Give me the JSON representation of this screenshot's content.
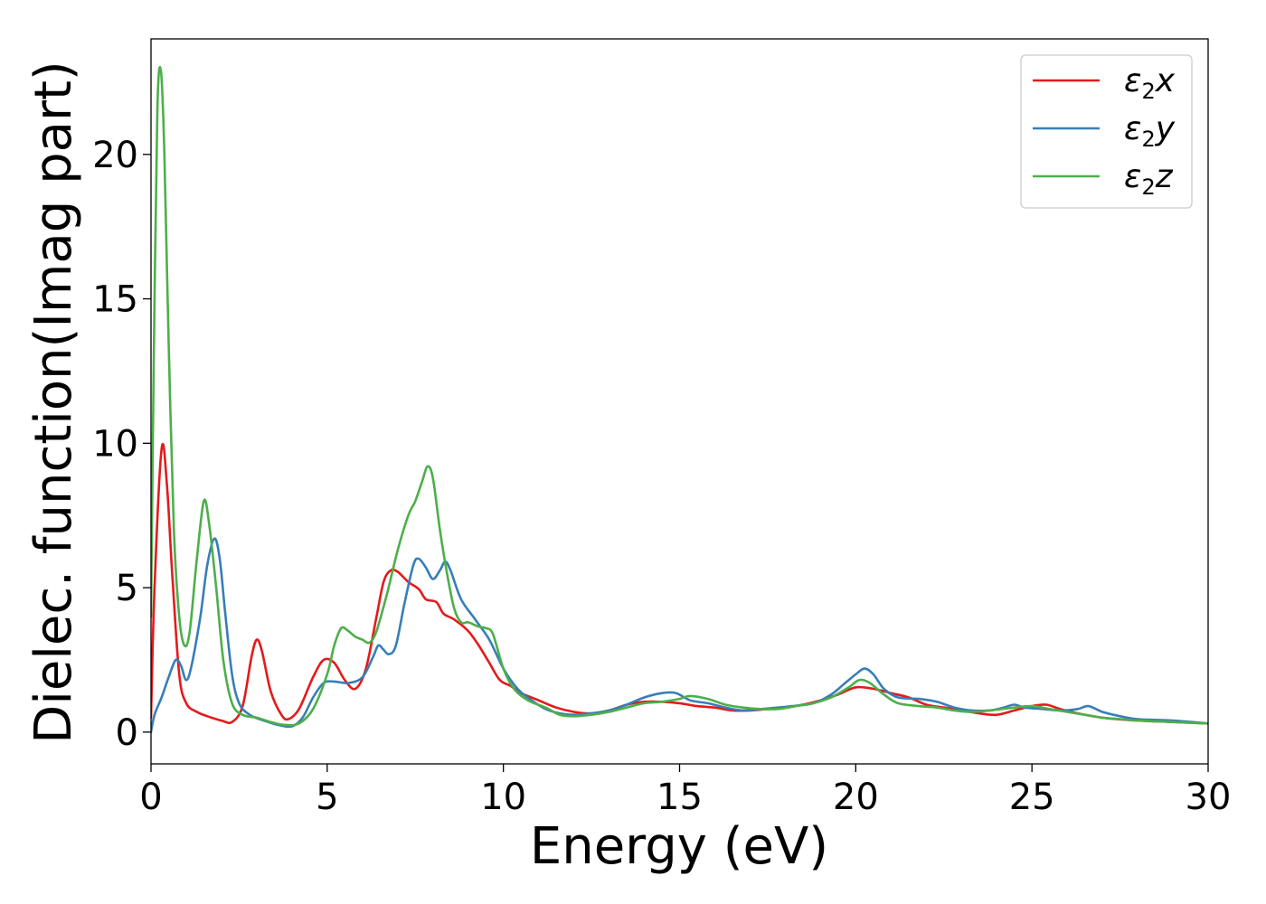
{
  "chart_data": {
    "type": "line",
    "xlabel": "Energy (eV)",
    "ylabel": "Dielec. function(Imag part)",
    "xlim": [
      0,
      30
    ],
    "ylim": [
      -1.1,
      24.0
    ],
    "xticks": [
      0,
      5,
      10,
      15,
      20,
      25,
      30
    ],
    "yticks": [
      0,
      5,
      10,
      15,
      20
    ],
    "grid": false,
    "legend_position": "top-right",
    "series": [
      {
        "name": "ε2x",
        "legend_base": "ε",
        "legend_sub": "2",
        "legend_suffix": "x",
        "color": "#e41a1c",
        "points": [
          [
            0,
            0.5
          ],
          [
            0.1,
            5.0
          ],
          [
            0.3,
            9.8
          ],
          [
            0.45,
            8.6
          ],
          [
            0.6,
            5.5
          ],
          [
            0.8,
            2.0
          ],
          [
            1.0,
            1.0
          ],
          [
            1.3,
            0.7
          ],
          [
            1.6,
            0.55
          ],
          [
            2.0,
            0.4
          ],
          [
            2.3,
            0.35
          ],
          [
            2.6,
            0.9
          ],
          [
            2.85,
            2.6
          ],
          [
            3.0,
            3.2
          ],
          [
            3.15,
            2.8
          ],
          [
            3.4,
            1.4
          ],
          [
            3.7,
            0.6
          ],
          [
            3.9,
            0.45
          ],
          [
            4.2,
            0.8
          ],
          [
            4.6,
            1.9
          ],
          [
            4.9,
            2.5
          ],
          [
            5.2,
            2.4
          ],
          [
            5.5,
            1.8
          ],
          [
            5.8,
            1.5
          ],
          [
            6.1,
            2.2
          ],
          [
            6.4,
            4.0
          ],
          [
            6.6,
            5.2
          ],
          [
            6.8,
            5.6
          ],
          [
            7.0,
            5.55
          ],
          [
            7.3,
            5.2
          ],
          [
            7.6,
            4.95
          ],
          [
            7.8,
            4.6
          ],
          [
            8.1,
            4.5
          ],
          [
            8.3,
            4.1
          ],
          [
            8.6,
            3.9
          ],
          [
            9.0,
            3.5
          ],
          [
            9.3,
            3.0
          ],
          [
            9.6,
            2.4
          ],
          [
            9.9,
            1.8
          ],
          [
            10.2,
            1.6
          ],
          [
            10.5,
            1.35
          ],
          [
            11.0,
            1.1
          ],
          [
            11.5,
            0.85
          ],
          [
            12.0,
            0.7
          ],
          [
            12.5,
            0.65
          ],
          [
            13.0,
            0.75
          ],
          [
            13.5,
            0.95
          ],
          [
            14.0,
            1.05
          ],
          [
            14.5,
            1.05
          ],
          [
            15.0,
            1.0
          ],
          [
            15.5,
            0.9
          ],
          [
            16.0,
            0.85
          ],
          [
            16.5,
            0.75
          ],
          [
            17.0,
            0.75
          ],
          [
            17.5,
            0.8
          ],
          [
            18.0,
            0.85
          ],
          [
            18.5,
            0.95
          ],
          [
            19.0,
            1.1
          ],
          [
            19.5,
            1.3
          ],
          [
            20.0,
            1.55
          ],
          [
            20.5,
            1.5
          ],
          [
            21.0,
            1.35
          ],
          [
            21.5,
            1.2
          ],
          [
            22.0,
            0.95
          ],
          [
            22.5,
            0.85
          ],
          [
            23.0,
            0.75
          ],
          [
            23.5,
            0.65
          ],
          [
            24.0,
            0.6
          ],
          [
            24.5,
            0.75
          ],
          [
            25.0,
            0.9
          ],
          [
            25.4,
            0.95
          ],
          [
            25.8,
            0.8
          ],
          [
            26.3,
            0.65
          ],
          [
            27.0,
            0.5
          ],
          [
            28.0,
            0.4
          ],
          [
            29.0,
            0.35
          ],
          [
            30.0,
            0.3
          ]
        ]
      },
      {
        "name": "ε2y",
        "legend_base": "ε",
        "legend_sub": "2",
        "legend_suffix": "y",
        "color": "#377eb8",
        "points": [
          [
            0,
            0.0
          ],
          [
            0.1,
            0.6
          ],
          [
            0.3,
            1.2
          ],
          [
            0.5,
            1.9
          ],
          [
            0.7,
            2.5
          ],
          [
            0.85,
            2.3
          ],
          [
            1.0,
            1.8
          ],
          [
            1.15,
            2.3
          ],
          [
            1.4,
            4.0
          ],
          [
            1.6,
            5.8
          ],
          [
            1.8,
            6.7
          ],
          [
            1.95,
            6.0
          ],
          [
            2.1,
            4.2
          ],
          [
            2.3,
            2.0
          ],
          [
            2.5,
            1.0
          ],
          [
            2.8,
            0.6
          ],
          [
            3.2,
            0.4
          ],
          [
            3.6,
            0.25
          ],
          [
            4.0,
            0.2
          ],
          [
            4.3,
            0.5
          ],
          [
            4.6,
            1.2
          ],
          [
            4.9,
            1.7
          ],
          [
            5.2,
            1.75
          ],
          [
            5.6,
            1.7
          ],
          [
            6.0,
            1.9
          ],
          [
            6.3,
            2.6
          ],
          [
            6.45,
            3.0
          ],
          [
            6.6,
            2.85
          ],
          [
            6.75,
            2.7
          ],
          [
            6.95,
            3.0
          ],
          [
            7.2,
            4.5
          ],
          [
            7.45,
            5.8
          ],
          [
            7.6,
            6.0
          ],
          [
            7.8,
            5.7
          ],
          [
            8.0,
            5.3
          ],
          [
            8.2,
            5.6
          ],
          [
            8.35,
            5.9
          ],
          [
            8.5,
            5.6
          ],
          [
            8.8,
            4.6
          ],
          [
            9.2,
            3.9
          ],
          [
            9.6,
            3.2
          ],
          [
            10.0,
            2.2
          ],
          [
            10.4,
            1.5
          ],
          [
            10.8,
            1.1
          ],
          [
            11.2,
            0.8
          ],
          [
            11.6,
            0.65
          ],
          [
            12.0,
            0.6
          ],
          [
            12.5,
            0.65
          ],
          [
            13.0,
            0.75
          ],
          [
            13.5,
            0.95
          ],
          [
            14.0,
            1.2
          ],
          [
            14.5,
            1.35
          ],
          [
            14.9,
            1.35
          ],
          [
            15.3,
            1.1
          ],
          [
            15.8,
            1.0
          ],
          [
            16.3,
            0.85
          ],
          [
            16.8,
            0.75
          ],
          [
            17.3,
            0.8
          ],
          [
            17.8,
            0.85
          ],
          [
            18.2,
            0.9
          ],
          [
            18.8,
            1.0
          ],
          [
            19.3,
            1.3
          ],
          [
            19.7,
            1.7
          ],
          [
            20.0,
            2.0
          ],
          [
            20.25,
            2.2
          ],
          [
            20.5,
            2.0
          ],
          [
            20.8,
            1.5
          ],
          [
            21.2,
            1.2
          ],
          [
            21.8,
            1.15
          ],
          [
            22.3,
            1.05
          ],
          [
            22.8,
            0.85
          ],
          [
            23.3,
            0.75
          ],
          [
            23.8,
            0.75
          ],
          [
            24.2,
            0.85
          ],
          [
            24.5,
            0.95
          ],
          [
            24.8,
            0.85
          ],
          [
            25.3,
            0.8
          ],
          [
            25.8,
            0.75
          ],
          [
            26.3,
            0.8
          ],
          [
            26.6,
            0.9
          ],
          [
            27.0,
            0.7
          ],
          [
            27.5,
            0.55
          ],
          [
            28.0,
            0.45
          ],
          [
            29.0,
            0.4
          ],
          [
            30.0,
            0.3
          ]
        ]
      },
      {
        "name": "ε2z",
        "legend_base": "ε",
        "legend_sub": "2",
        "legend_suffix": "z",
        "color": "#4daf4a",
        "points": [
          [
            0,
            4.0
          ],
          [
            0.08,
            13.0
          ],
          [
            0.18,
            21.5
          ],
          [
            0.28,
            22.9
          ],
          [
            0.38,
            20.0
          ],
          [
            0.5,
            13.5
          ],
          [
            0.65,
            7.0
          ],
          [
            0.8,
            4.0
          ],
          [
            0.95,
            3.0
          ],
          [
            1.1,
            3.5
          ],
          [
            1.3,
            6.0
          ],
          [
            1.5,
            8.0
          ],
          [
            1.65,
            7.2
          ],
          [
            1.85,
            5.0
          ],
          [
            2.05,
            2.5
          ],
          [
            2.3,
            1.0
          ],
          [
            2.6,
            0.6
          ],
          [
            3.0,
            0.5
          ],
          [
            3.4,
            0.35
          ],
          [
            3.8,
            0.25
          ],
          [
            4.2,
            0.3
          ],
          [
            4.6,
            0.8
          ],
          [
            5.0,
            2.0
          ],
          [
            5.2,
            3.0
          ],
          [
            5.4,
            3.6
          ],
          [
            5.6,
            3.5
          ],
          [
            5.8,
            3.3
          ],
          [
            6.0,
            3.2
          ],
          [
            6.2,
            3.1
          ],
          [
            6.4,
            3.5
          ],
          [
            6.7,
            4.8
          ],
          [
            7.0,
            6.3
          ],
          [
            7.3,
            7.5
          ],
          [
            7.5,
            8.0
          ],
          [
            7.7,
            8.7
          ],
          [
            7.85,
            9.2
          ],
          [
            8.0,
            8.8
          ],
          [
            8.2,
            7.0
          ],
          [
            8.4,
            5.5
          ],
          [
            8.6,
            4.3
          ],
          [
            8.8,
            3.8
          ],
          [
            9.0,
            3.8
          ],
          [
            9.3,
            3.65
          ],
          [
            9.5,
            3.6
          ],
          [
            9.7,
            3.4
          ],
          [
            10.0,
            2.2
          ],
          [
            10.3,
            1.5
          ],
          [
            10.7,
            1.1
          ],
          [
            11.2,
            0.85
          ],
          [
            11.6,
            0.6
          ],
          [
            12.0,
            0.55
          ],
          [
            12.5,
            0.6
          ],
          [
            13.0,
            0.7
          ],
          [
            13.5,
            0.85
          ],
          [
            14.0,
            1.0
          ],
          [
            14.5,
            1.05
          ],
          [
            15.0,
            1.15
          ],
          [
            15.3,
            1.25
          ],
          [
            15.8,
            1.15
          ],
          [
            16.3,
            0.95
          ],
          [
            16.8,
            0.85
          ],
          [
            17.3,
            0.8
          ],
          [
            17.8,
            0.8
          ],
          [
            18.3,
            0.9
          ],
          [
            18.8,
            1.0
          ],
          [
            19.3,
            1.2
          ],
          [
            19.8,
            1.55
          ],
          [
            20.1,
            1.8
          ],
          [
            20.4,
            1.7
          ],
          [
            20.8,
            1.3
          ],
          [
            21.2,
            1.0
          ],
          [
            21.8,
            0.9
          ],
          [
            22.3,
            0.85
          ],
          [
            22.8,
            0.75
          ],
          [
            23.3,
            0.7
          ],
          [
            23.8,
            0.75
          ],
          [
            24.5,
            0.85
          ],
          [
            25.0,
            0.9
          ],
          [
            25.5,
            0.8
          ],
          [
            26.0,
            0.7
          ],
          [
            26.5,
            0.6
          ],
          [
            27.0,
            0.5
          ],
          [
            27.5,
            0.45
          ],
          [
            28.0,
            0.4
          ],
          [
            29.0,
            0.35
          ],
          [
            30.0,
            0.3
          ]
        ]
      }
    ]
  }
}
